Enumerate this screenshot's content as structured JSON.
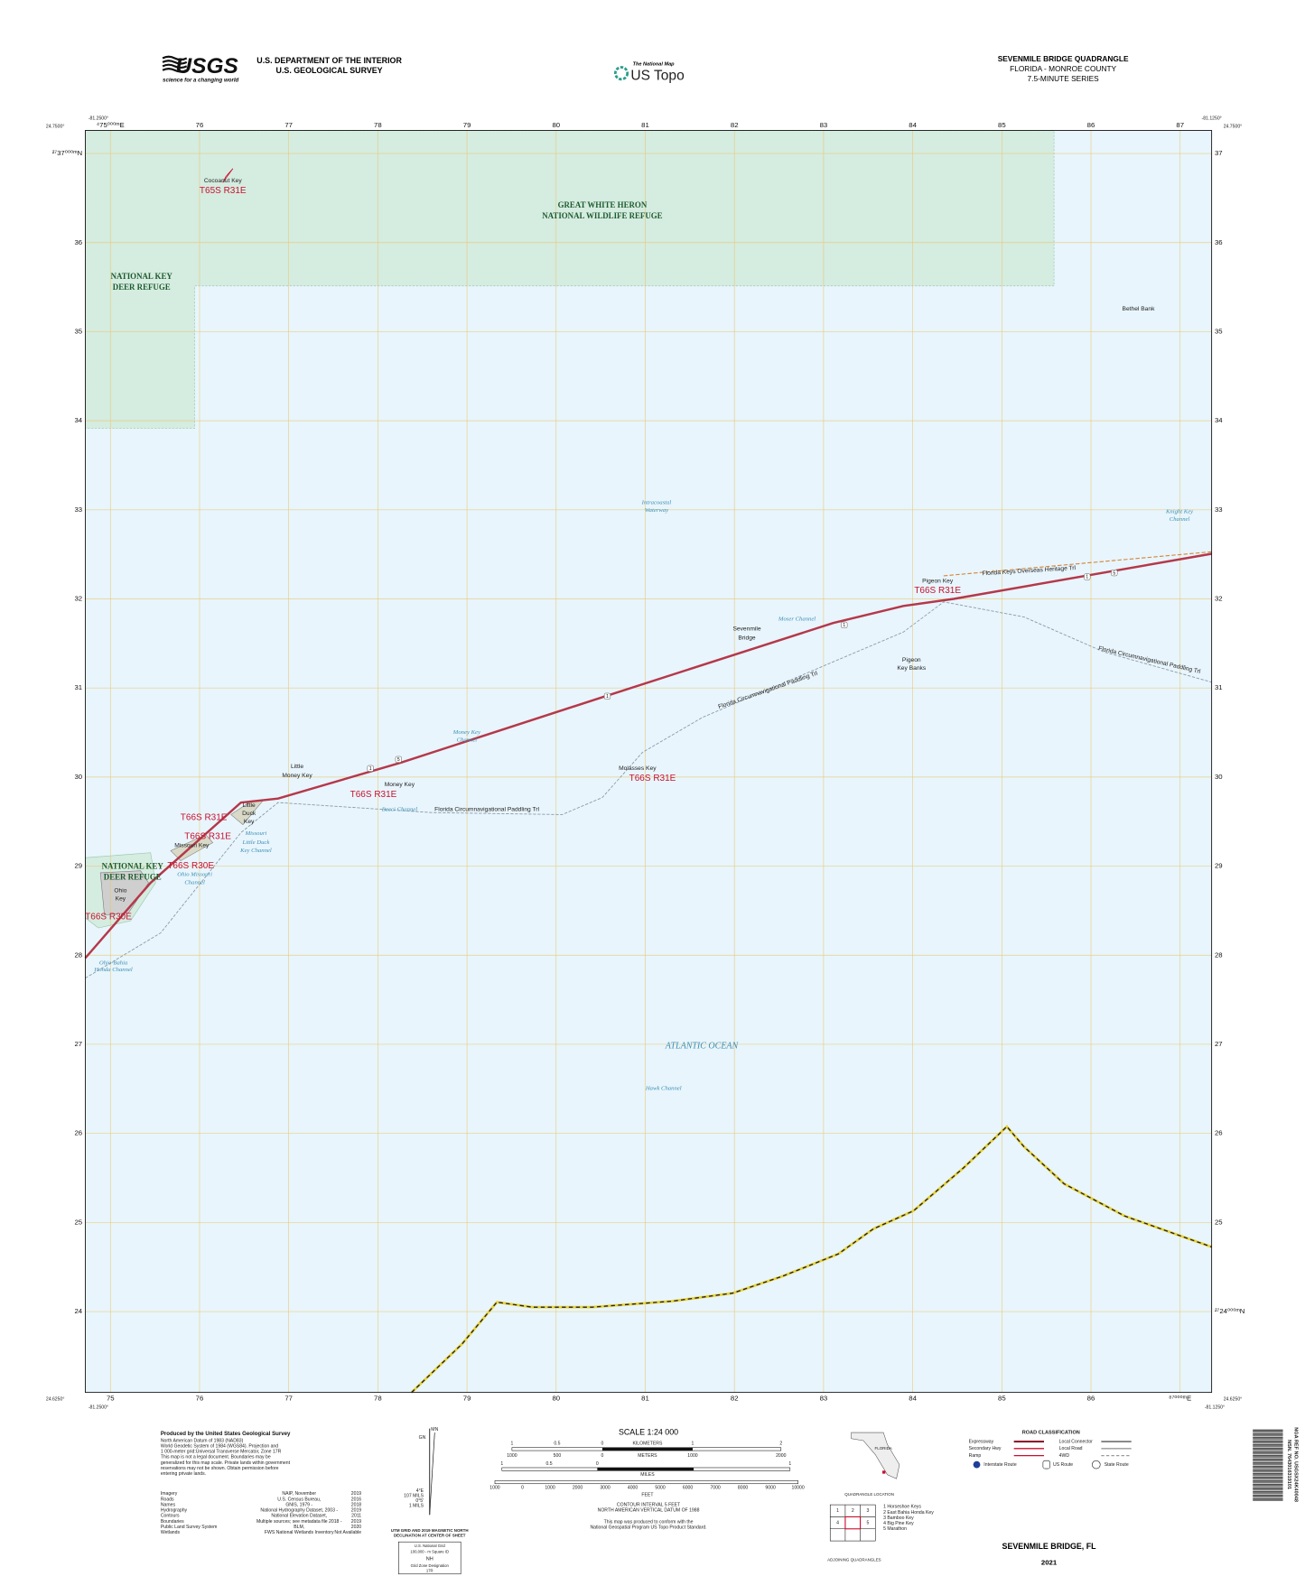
{
  "header": {
    "usgs": "USGS",
    "usgs_tagline": "science for a changing world",
    "agency": [
      "U.S. DEPARTMENT OF THE INTERIOR",
      "U.S. GEOLOGICAL SURVEY"
    ],
    "national_map": "The National Map",
    "us_topo": "US Topo",
    "quad": [
      "SEVENMILE BRIDGE QUADRANGLE",
      "FLORIDA - MONROE COUNTY",
      "7.5-MINUTE SERIES"
    ]
  },
  "corners": [
    "24.7500°",
    "-81.2500°",
    "-81.1250°",
    "24.7500°",
    "24.6250°",
    "-81.2500°",
    "-81.1250°",
    "24.6250°"
  ],
  "grid": {
    "top": [
      "⁴75⁰⁰⁰ᵐE",
      "76",
      "77",
      "78",
      "79",
      "80",
      "81",
      "82",
      "83",
      "84",
      "85",
      "86",
      "87"
    ],
    "bottom": [
      "75",
      "76",
      "77",
      "78",
      "79",
      "80",
      "81",
      "82",
      "83",
      "84",
      "85",
      "86",
      "⁸⁷⁰⁰⁰ᵐE"
    ],
    "left": [
      "²⁷37⁰⁰⁰ᵐN",
      "36",
      "35",
      "34",
      "33",
      "32",
      "31",
      "30",
      "29",
      "28",
      "27",
      "26",
      "25",
      "24"
    ],
    "right": [
      "37",
      "36",
      "35",
      "34",
      "33",
      "32",
      "31",
      "30",
      "29",
      "28",
      "27",
      "26",
      "25",
      "²⁷24⁰⁰⁰ᵐN"
    ]
  },
  "places": [
    "Cocoanut Key",
    "T65S R31E",
    "GREAT WHITE HERON",
    "NATIONAL WILDLIFE REFUGE",
    "NATIONAL KEY",
    "DEER REFUGE",
    "Bethel Bank",
    "Intracoastal",
    "Waterway",
    "Knight Key",
    "Channel",
    "Florida Keys Overseas Heritage Trl",
    "Pigeon Key",
    "T66S R31E",
    "Moser Channel",
    "Sevenmile",
    "Bridge",
    "Pigeon",
    "Key Banks",
    "Florida Circumnavigational Paddling Trl",
    "Florida Circumnavigational Paddling Trl",
    "Money Key",
    "Channel",
    "Little",
    "Money Key",
    "Molasses Key",
    "T66S R31E",
    "Money Key",
    "T66S R31E",
    "Bacci Channel",
    "Florida Circumnavigational Paddling Trl",
    "T66S R31E",
    "Little",
    "Duck",
    "Key",
    "T66S R31E",
    "Missouri Key",
    "Missouri",
    "Little Duck",
    "Key Channel",
    "T66S R30E",
    "NATIONAL KEY",
    "DEER REFUGE",
    "Ohio Missouri",
    "Channel",
    "Ohio",
    "Key",
    "T66S R30E",
    "Ohio-Bahia",
    "Honda Channel",
    "ATLANTIC OCEAN",
    "Hawk Channel"
  ],
  "routes": [
    "1",
    "5",
    "1",
    "1",
    "1",
    "5"
  ],
  "footer": {
    "produced_by": "Produced by the United States Geological Survey",
    "notes": [
      "North American Datum of 1983 (NAD83)",
      "World Geodetic System of 1984 (WGS84). Projection and",
      "1 000-meter grid:Universal Transverse Mercator, Zone 17R",
      "This map is not a legal document. Boundaries may be",
      "generalized for this map scale. Private lands within government",
      "reservations may not be shown. Obtain permission before",
      "entering private lands."
    ],
    "sources": [
      [
        "Imagery",
        "NAIP, November",
        "2019"
      ],
      [
        "Roads",
        "U.S. Census Bureau,",
        "2016"
      ],
      [
        "Names",
        "GNIS, 1979 -",
        "2018"
      ],
      [
        "Hydrography",
        "National Hydrography Dataset, 2003 -",
        "2019"
      ],
      [
        "Contours",
        "National Elevation Dataset,",
        "2011"
      ],
      [
        "Boundaries",
        "Multiple sources; see metadata file 2018 -",
        "2019"
      ],
      [
        "Public Land Survey System",
        "BLM,",
        "2020"
      ],
      [
        "Wetlands",
        "FWS National Wetlands Inventory",
        "Not Available"
      ]
    ],
    "declination": {
      "mn": "MN",
      "gn": "GN",
      "values": [
        "4°E",
        "107 MILS",
        "0°5'",
        "1 MILS"
      ],
      "caption": [
        "UTM GRID AND 2019 MAGNETIC NORTH",
        "DECLINATION AT CENTER OF SHEET"
      ],
      "grid_box": [
        "U.S. National Grid",
        "100,000 - m Square ID",
        "NH",
        "Grid Zone Designation",
        "17R"
      ]
    },
    "scale": {
      "title": "SCALE 1:24 000",
      "km": [
        "1",
        "0.5",
        "0",
        "1",
        "2"
      ],
      "km_unit": "KILOMETERS",
      "m": [
        "1000",
        "500",
        "0",
        "1000",
        "2000"
      ],
      "m_unit": "METERS",
      "mi": [
        "1",
        "0.5",
        "0",
        "1"
      ],
      "mi_unit": "MILES",
      "ft": [
        "1000",
        "0",
        "1000",
        "2000",
        "3000",
        "4000",
        "5000",
        "6000",
        "7000",
        "8000",
        "9000",
        "10000"
      ],
      "ft_unit": "FEET"
    },
    "contour": [
      "CONTOUR INTERVAL 5 FEET",
      "NORTH AMERICAN VERTICAL DATUM OF 1988",
      "This map was produced to conform with the",
      "National Geospatial Program US Topo Product Standard."
    ],
    "locator": {
      "state": "FLORIDA",
      "caption": "QUADRANGLE LOCATION"
    },
    "adjoining": {
      "cells": [
        "1",
        "2",
        "3",
        "4",
        "5"
      ],
      "names": [
        "1 Horseshoe Keys",
        "2 East Bahia Honda Key",
        "3 Bamboo Key",
        "4 Big Pine Key",
        "5 Marathon"
      ],
      "caption": "ADJOINING QUADRANGLES"
    },
    "roads": {
      "title": "ROAD CLASSIFICATION",
      "left": [
        "Expressway",
        "Secondary Hwy",
        "Ramp"
      ],
      "right": [
        "Local Connector",
        "Local Road",
        "4WD"
      ],
      "shields": [
        "Interstate Route",
        "US Route",
        "State Route"
      ]
    },
    "sheet_title": "SEVENMILE BRIDGE, FL",
    "year": "2021",
    "barcode": [
      "NSN. 7643016319101",
      "NGA REF NO. USGSX24K40048"
    ]
  }
}
